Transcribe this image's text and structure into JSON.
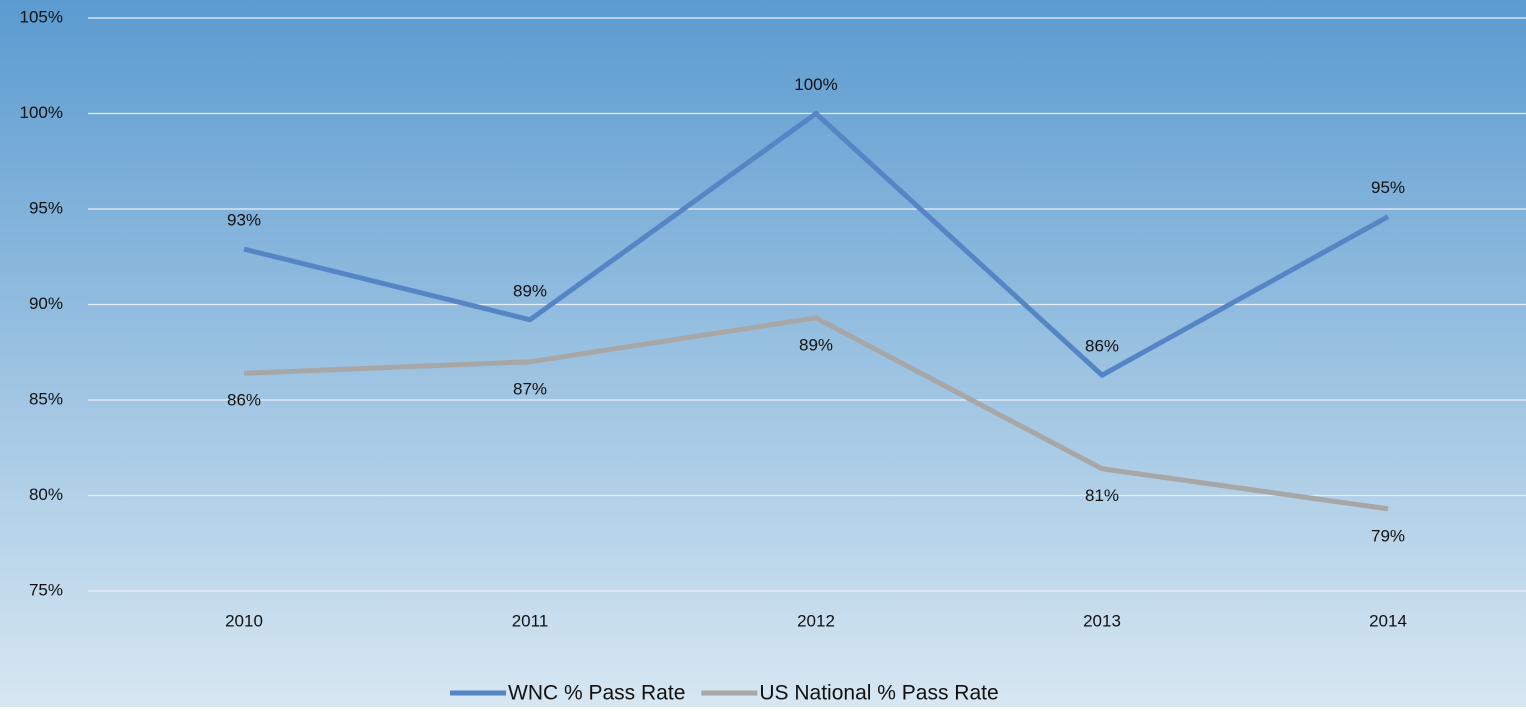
{
  "chart_data": {
    "type": "line",
    "categories": [
      "2010",
      "2011",
      "2012",
      "2013",
      "2014"
    ],
    "series": [
      {
        "name": "WNC % Pass Rate",
        "color": "#5585c5",
        "values": [
          92.9,
          89.2,
          100,
          86.3,
          94.6
        ],
        "value_labels": [
          "93%",
          "89%",
          "100%",
          "86%",
          "95%"
        ],
        "label_position": "above"
      },
      {
        "name": "US National % Pass Rate",
        "color": "#a7a7a7",
        "values": [
          86.4,
          87.0,
          89.3,
          81.4,
          79.3
        ],
        "value_labels": [
          "86%",
          "87%",
          "89%",
          "81%",
          "79%"
        ],
        "label_position": "below"
      }
    ],
    "ylim": [
      75,
      105
    ],
    "yticks": [
      {
        "value": 75,
        "label": "75%"
      },
      {
        "value": 80,
        "label": "80%"
      },
      {
        "value": 85,
        "label": "85%"
      },
      {
        "value": 90,
        "label": "90%"
      },
      {
        "value": 95,
        "label": "95%"
      },
      {
        "value": 100,
        "label": "100%"
      },
      {
        "value": 105,
        "label": "105%"
      }
    ],
    "grid": true,
    "legend": "bottom"
  }
}
